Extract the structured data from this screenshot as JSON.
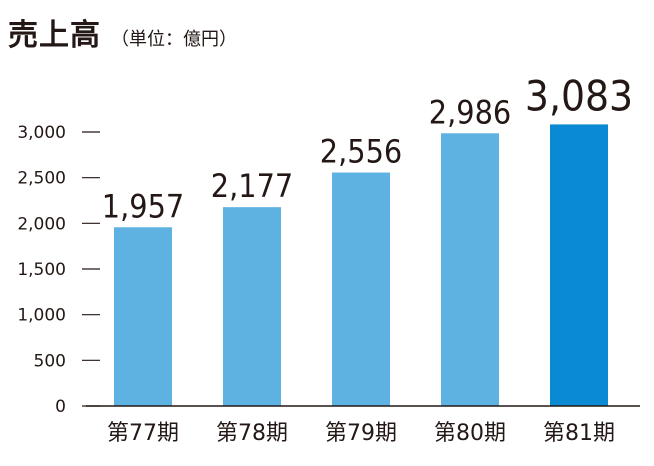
{
  "title": "売上高",
  "unit_note": "（単位：億円）",
  "colors": {
    "bar": "#5eb2e2",
    "bar_highlight": "#0a8ad2",
    "text": "#231815",
    "tick": "#231815"
  },
  "chart_data": {
    "type": "bar",
    "title": "売上高",
    "ylabel": "（単位：億円）",
    "categories": [
      "第77期",
      "第78期",
      "第79期",
      "第80期",
      "第81期"
    ],
    "values": [
      1957,
      2177,
      2556,
      2986,
      3083
    ],
    "value_labels": [
      "1,957",
      "2,177",
      "2,556",
      "2,986",
      "3,083"
    ],
    "highlight_index": 4,
    "ylim": [
      0,
      3000
    ],
    "yticks": [
      0,
      500,
      1000,
      1500,
      2000,
      2500,
      3000
    ],
    "ytick_labels": [
      "0",
      "500",
      "1,000",
      "1,500",
      "2,000",
      "2,500",
      "3,000"
    ],
    "grid": false,
    "legend": "none"
  }
}
